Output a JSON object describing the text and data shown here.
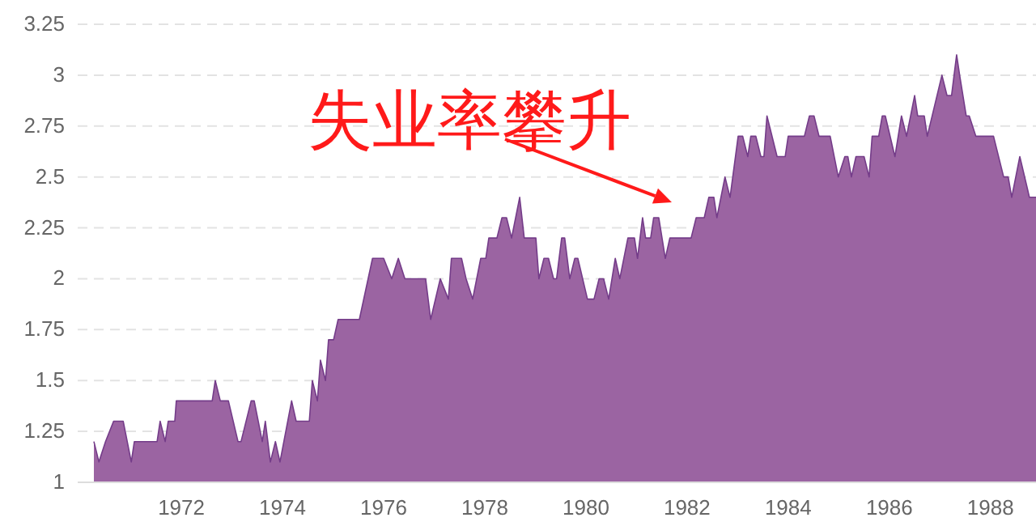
{
  "chart_data": {
    "type": "area",
    "grid": "y",
    "xlim": [
      1969.95,
      1988.9
    ],
    "ylim": [
      1,
      3.25
    ],
    "xticks": [
      1972,
      1974,
      1976,
      1978,
      1980,
      1982,
      1984,
      1986,
      1988
    ],
    "yticks": [
      1,
      1.25,
      1.5,
      1.75,
      2,
      2.25,
      2.5,
      2.75,
      3,
      3.25
    ],
    "annotations": [
      "失业率攀升"
    ],
    "x": [
      1970.27,
      1970.37,
      1970.5,
      1970.66,
      1970.85,
      1971.01,
      1971.07,
      1971.52,
      1971.58,
      1971.68,
      1971.74,
      1971.87,
      1971.9,
      1972.61,
      1972.67,
      1972.77,
      1972.93,
      1973.12,
      1973.18,
      1973.38,
      1973.44,
      1973.6,
      1973.66,
      1973.76,
      1973.86,
      1973.95,
      1974.18,
      1974.27,
      1974.53,
      1974.59,
      1974.69,
      1974.75,
      1974.85,
      1974.91,
      1975.01,
      1975.1,
      1975.52,
      1975.78,
      1976.0,
      1976.16,
      1976.29,
      1976.42,
      1976.83,
      1976.93,
      1977.12,
      1977.28,
      1977.34,
      1977.54,
      1977.63,
      1977.76,
      1977.92,
      1978.02,
      1978.08,
      1978.24,
      1978.34,
      1978.43,
      1978.53,
      1978.69,
      1978.78,
      1979.01,
      1979.07,
      1979.17,
      1979.26,
      1979.36,
      1979.42,
      1979.52,
      1979.58,
      1979.68,
      1979.78,
      1979.84,
      1980.03,
      1980.16,
      1980.26,
      1980.35,
      1980.45,
      1980.58,
      1980.67,
      1980.83,
      1980.96,
      1981.02,
      1981.12,
      1981.18,
      1981.28,
      1981.34,
      1981.44,
      1981.57,
      1981.66,
      1981.86,
      1982.08,
      1982.18,
      1982.34,
      1982.43,
      1982.53,
      1982.59,
      1982.75,
      1982.85,
      1983.01,
      1983.1,
      1983.2,
      1983.26,
      1983.36,
      1983.46,
      1983.52,
      1983.58,
      1983.78,
      1983.94,
      1984.0,
      1984.32,
      1984.42,
      1984.51,
      1984.61,
      1984.83,
      1984.99,
      1985.12,
      1985.18,
      1985.25,
      1985.34,
      1985.5,
      1985.6,
      1985.66,
      1985.79,
      1985.86,
      1985.92,
      1986.11,
      1986.24,
      1986.34,
      1986.5,
      1986.56,
      1986.69,
      1986.75,
      1987.04,
      1987.14,
      1987.23,
      1987.33,
      1987.39,
      1987.52,
      1987.58,
      1987.71,
      1988.06,
      1988.26,
      1988.35,
      1988.42,
      1988.58,
      1988.77,
      1988.9
    ],
    "series": [
      {
        "color": "#9b64a2",
        "values": [
          1.2,
          1.1,
          1.2,
          1.3,
          1.3,
          1.1,
          1.2,
          1.2,
          1.3,
          1.2,
          1.3,
          1.3,
          1.4,
          1.4,
          1.5,
          1.4,
          1.4,
          1.2,
          1.2,
          1.4,
          1.4,
          1.2,
          1.3,
          1.1,
          1.2,
          1.1,
          1.4,
          1.3,
          1.3,
          1.5,
          1.4,
          1.6,
          1.5,
          1.7,
          1.7,
          1.8,
          1.8,
          2.1,
          2.1,
          2.0,
          2.1,
          2.0,
          2.0,
          1.8,
          2.0,
          1.9,
          2.1,
          2.1,
          2.0,
          1.9,
          2.1,
          2.1,
          2.2,
          2.2,
          2.3,
          2.3,
          2.2,
          2.4,
          2.2,
          2.2,
          2.0,
          2.1,
          2.1,
          2.0,
          2.0,
          2.2,
          2.2,
          2.0,
          2.1,
          2.1,
          1.9,
          1.9,
          2.0,
          2.0,
          1.9,
          2.1,
          2.0,
          2.2,
          2.2,
          2.1,
          2.3,
          2.2,
          2.2,
          2.3,
          2.3,
          2.1,
          2.2,
          2.2,
          2.2,
          2.3,
          2.3,
          2.4,
          2.4,
          2.3,
          2.5,
          2.4,
          2.7,
          2.7,
          2.6,
          2.7,
          2.7,
          2.6,
          2.6,
          2.8,
          2.6,
          2.6,
          2.7,
          2.7,
          2.8,
          2.8,
          2.7,
          2.7,
          2.5,
          2.6,
          2.6,
          2.5,
          2.6,
          2.6,
          2.5,
          2.7,
          2.7,
          2.8,
          2.8,
          2.6,
          2.8,
          2.7,
          2.9,
          2.8,
          2.8,
          2.7,
          3.0,
          2.9,
          2.9,
          3.1,
          3.0,
          2.8,
          2.8,
          2.7,
          2.7,
          2.5,
          2.5,
          2.4,
          2.6,
          2.4,
          2.4
        ]
      }
    ]
  }
}
